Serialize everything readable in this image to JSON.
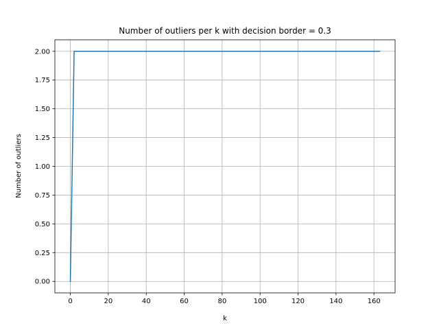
{
  "chart_data": {
    "type": "line",
    "title": "Number of outliers per k with decision border = 0.3",
    "xlabel": "k",
    "ylabel": "Number of outliers",
    "xlim": [
      -8.15,
      171.15
    ],
    "ylim": [
      -0.1,
      2.1
    ],
    "xticks": [
      0,
      20,
      40,
      60,
      80,
      100,
      120,
      140,
      160
    ],
    "yticks": [
      0.0,
      0.25,
      0.5,
      0.75,
      1.0,
      1.25,
      1.5,
      1.75,
      2.0
    ],
    "xtick_labels": [
      "0",
      "20",
      "40",
      "60",
      "80",
      "100",
      "120",
      "140",
      "160"
    ],
    "ytick_labels": [
      "0.00",
      "0.25",
      "0.50",
      "0.75",
      "1.00",
      "1.25",
      "1.50",
      "1.75",
      "2.00"
    ],
    "grid": true,
    "series": [
      {
        "color": "#1f77b4",
        "x": [
          0,
          2,
          163
        ],
        "y": [
          0,
          2,
          2
        ]
      }
    ]
  }
}
